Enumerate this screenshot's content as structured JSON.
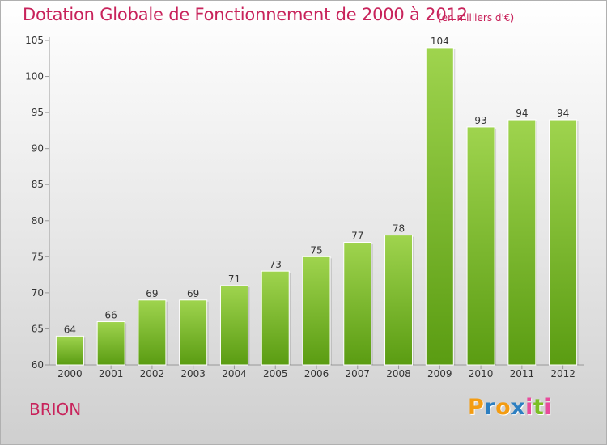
{
  "title": "Dotation Globale de Fonctionnement de 2000 à 2012",
  "subtitle": "(en milliers d'€)",
  "place": "BRION",
  "logo": {
    "letters": [
      "P",
      "r",
      "o",
      "x",
      "i",
      "t",
      "i"
    ],
    "colors": [
      "#f39c12",
      "#2d7fc1",
      "#f39c12",
      "#2d7fc1",
      "#e84b9c",
      "#7bbf24",
      "#e84b9c"
    ]
  },
  "colors": {
    "title": "#c8235b",
    "bar_light": "#9fd44e",
    "bar_dark": "#5a9c12"
  },
  "chart_data": {
    "type": "bar",
    "title": "Dotation Globale de Fonctionnement de 2000 à 2012",
    "subtitle": "(en milliers d'€)",
    "categories": [
      "2000",
      "2001",
      "2002",
      "2003",
      "2004",
      "2005",
      "2006",
      "2007",
      "2008",
      "2009",
      "2010",
      "2011",
      "2012"
    ],
    "values": [
      64,
      66,
      69,
      69,
      71,
      73,
      75,
      77,
      78,
      104,
      93,
      94,
      94
    ],
    "ylim": [
      60,
      105
    ],
    "yticks": [
      60,
      65,
      70,
      75,
      80,
      85,
      90,
      95,
      100,
      105
    ],
    "grid": false,
    "legend": "none"
  }
}
